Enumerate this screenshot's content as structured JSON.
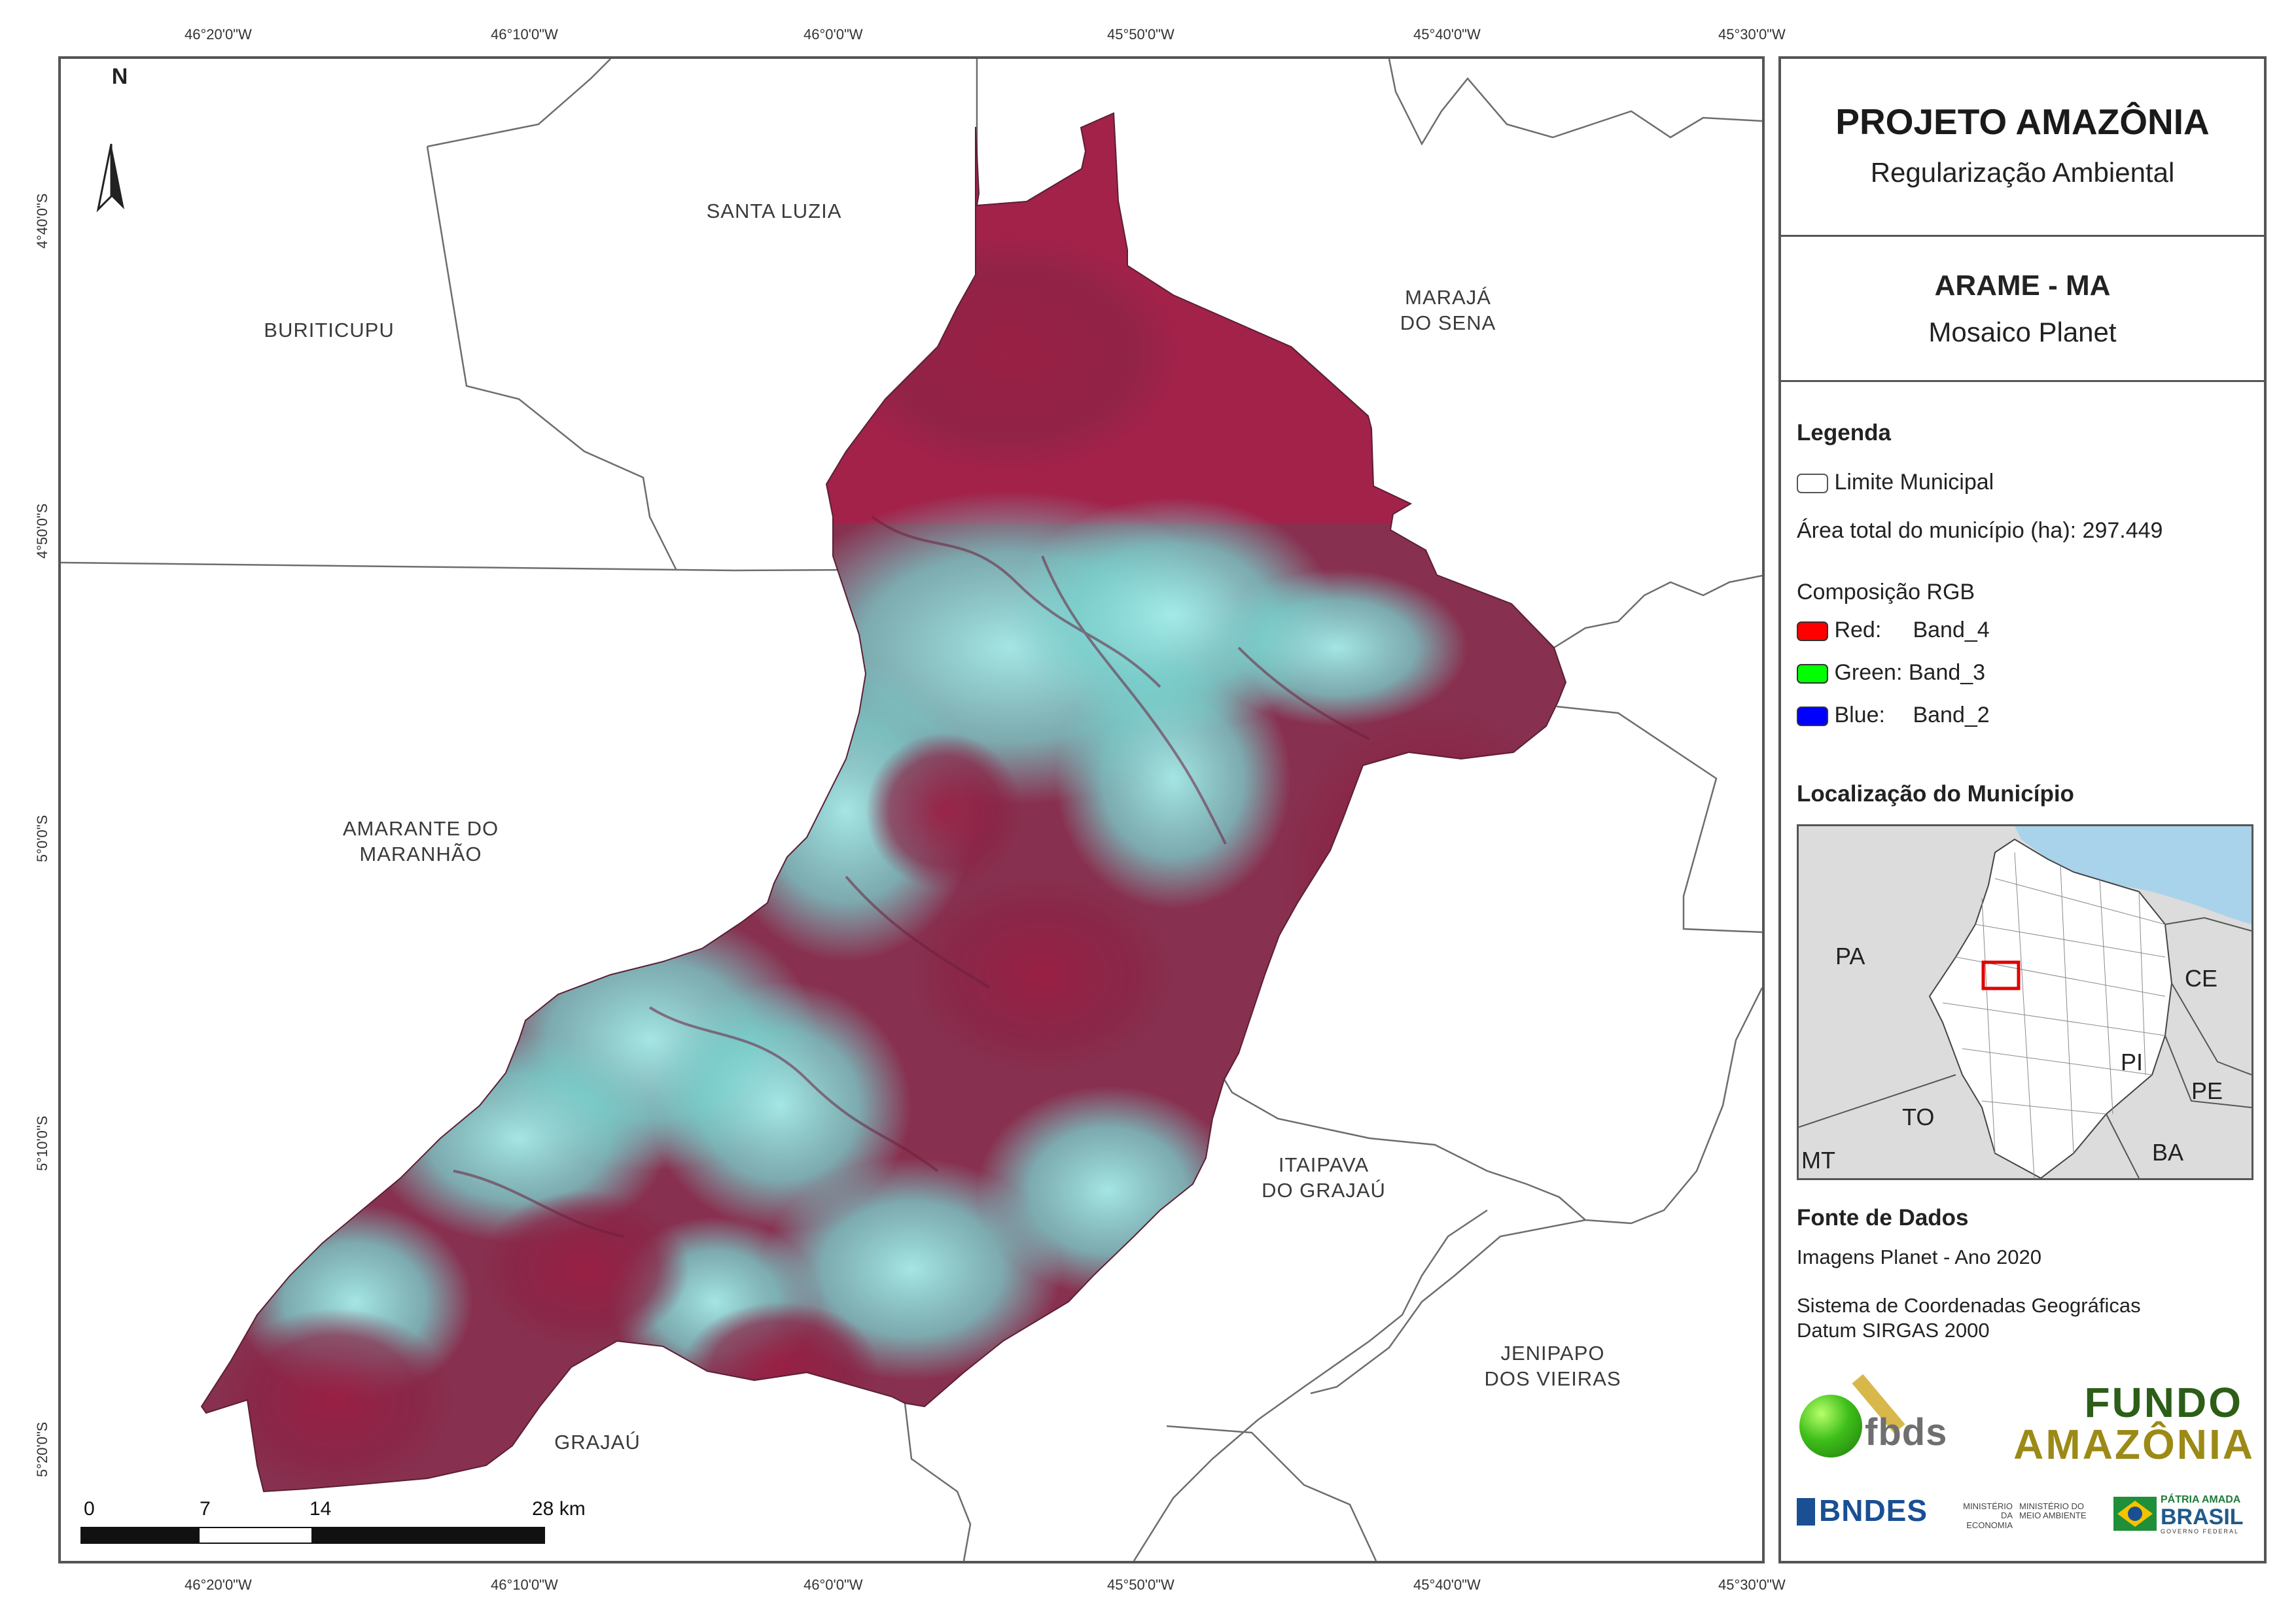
{
  "coords": {
    "top": [
      "46°20'0\"W",
      "46°10'0\"W",
      "46°0'0\"W",
      "45°50'0\"W",
      "45°40'0\"W",
      "45°30'0\"W"
    ],
    "bottom": [
      "46°20'0\"W",
      "46°10'0\"W",
      "46°0'0\"W",
      "45°50'0\"W",
      "45°40'0\"W",
      "45°30'0\"W"
    ],
    "left": [
      "4°40'0\"S",
      "4°50'0\"S",
      "5°0'0\"S",
      "5°10'0\"S",
      "5°20'0\"S"
    ]
  },
  "north": {
    "label": "N"
  },
  "municipalities": {
    "santa_luzia": "SANTA LUZIA",
    "buriticupu": "BURITICUPU",
    "maraja_line1": "MARAJÁ",
    "maraja_line2": "DO SENA",
    "amarante_line1": "AMARANTE DO",
    "amarante_line2": "MARANHÃO",
    "itaipava_line1": "ITAIPAVA",
    "itaipava_line2": "DO GRAJAÚ",
    "grajau": "GRAJAÚ",
    "jenipapo_line1": "JENIPAPO",
    "jenipapo_line2": "DOS VIEIRAS"
  },
  "scale": {
    "labels": [
      "0",
      "7",
      "14",
      "28 km"
    ]
  },
  "panel": {
    "title": "PROJETO AMAZÔNIA",
    "subtitle": "Regularização Ambiental",
    "municipality": "ARAME - MA",
    "mosaic": "Mosaico Planet",
    "legend": {
      "heading": "Legenda",
      "limit_label": "Limite Municipal",
      "area_label": "Área total do município (ha): 297.449",
      "rgb_heading": "Composição RGB",
      "bands": [
        {
          "name": "Red:",
          "band": "Band_4",
          "color": "#ff0000"
        },
        {
          "name": "Green:",
          "band": "Band_3",
          "color": "#00ff00"
        },
        {
          "name": "Blue:",
          "band": "Band_2",
          "color": "#0000ff"
        }
      ]
    },
    "location": {
      "heading": "Localização do Município",
      "states": {
        "pa": "PA",
        "ce": "CE",
        "pi": "PI",
        "to": "TO",
        "pe": "PE",
        "ba": "BA",
        "mt": "MT"
      }
    },
    "sources": {
      "heading": "Fonte de Dados",
      "line1": "Imagens Planet - Ano 2020",
      "line2": "Sistema de Coordenadas Geográficas",
      "line3": "Datum SIRGAS 2000"
    },
    "logos": {
      "fbds": "fbds",
      "fundo": "FUNDO",
      "amazonia": "AMAZÔNIA",
      "bndes": "BNDES",
      "min_econ_1": "MINISTÉRIO DA",
      "min_econ_2": "ECONOMIA",
      "min_amb_1": "MINISTÉRIO DO",
      "min_amb_2": "MEIO AMBIENTE",
      "patria_1": "PÁTRIA AMADA",
      "patria_2": "BRASIL",
      "patria_3": "GOVERNO FEDERAL"
    }
  },
  "colors": {
    "vegetation": "#8c2747",
    "cleared": "#79d3cf",
    "frame": "#555555",
    "ocean": "#a9d3ea",
    "state_fill": "#dcdcdc",
    "locator": "#e00000"
  }
}
